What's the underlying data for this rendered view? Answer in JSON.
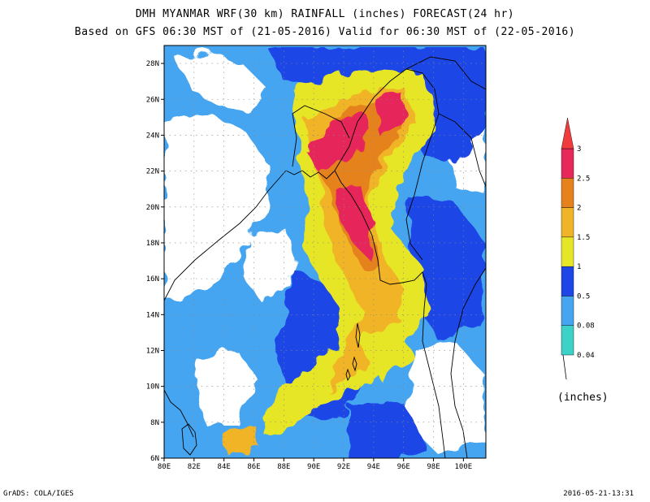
{
  "title_line1": "DMH MYANMAR WRF(30 km) RAINFALL (inches) FORECAST(24 hr)",
  "title_line2": "Based on GFS 06:30 MST of (21-05-2016) Valid for 06:30 MST of (22-05-2016)",
  "footer_left": "GrADS: COLA/IGES",
  "footer_right": "2016-05-21-13:31",
  "map": {
    "lon_range": [
      80,
      101.5
    ],
    "lat_range": [
      6,
      29
    ],
    "lon_ticks": [
      "80E",
      "82E",
      "84E",
      "86E",
      "88E",
      "90E",
      "92E",
      "94E",
      "96E",
      "98E",
      "100E"
    ],
    "lat_ticks": [
      "6N",
      "8N",
      "10N",
      "12N",
      "14N",
      "16N",
      "18N",
      "20N",
      "22N",
      "24N",
      "26N",
      "28N"
    ]
  },
  "legend": {
    "unit": "(inches)",
    "levels": [
      "0.04",
      "0.08",
      "0.5",
      "1",
      "1.5",
      "2",
      "2.5",
      "3"
    ],
    "colors": [
      "#3cd2c8",
      "#46a5f0",
      "#1e46e6",
      "#e6e628",
      "#f0b428",
      "#e6821e",
      "#e6285a",
      "#f03c3c"
    ],
    "fill_colors": {
      "none": "#ffffff",
      "c1": "#46a5f0",
      "c2": "#1e46e6",
      "c3": "#e6e628",
      "c4": "#f0b428",
      "c5": "#e6821e",
      "c6": "#e6285a"
    }
  }
}
